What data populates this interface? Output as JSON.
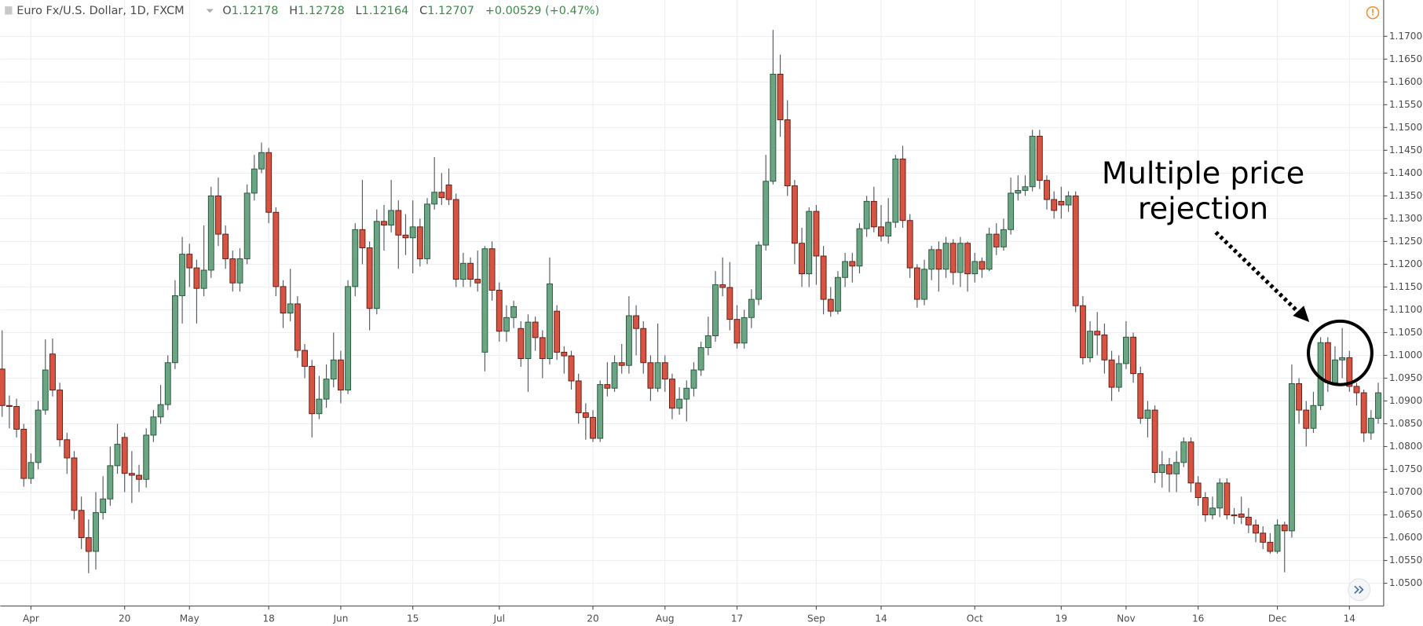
{
  "chart_data": {
    "type": "candlestick",
    "title": "Euro Fx/U.S. Dollar, 1D, FXCM",
    "quote": [
      {
        "label": "O",
        "value": 1.12178
      },
      {
        "label": "H",
        "value": 1.12728
      },
      {
        "label": "L",
        "value": 1.12164
      },
      {
        "label": "C",
        "value": 1.12707
      }
    ],
    "change": "+0.00529 (+0.47%)",
    "annotation": [
      "Multiple price",
      "rejection"
    ],
    "up_color": "#6ba583",
    "down_color": "#d75442",
    "grid": true,
    "ylim": [
      1.045,
      1.1736
    ],
    "yticks": [
      {
        "value": 1.05,
        "label": "1.05000"
      },
      {
        "value": 1.055,
        "label": "1.05500"
      },
      {
        "value": 1.06,
        "label": "1.06000"
      },
      {
        "value": 1.065,
        "label": "1.06500"
      },
      {
        "value": 1.07,
        "label": "1.07000"
      },
      {
        "value": 1.075,
        "label": "1.07500"
      },
      {
        "value": 1.08,
        "label": "1.08000"
      },
      {
        "value": 1.085,
        "label": "1.08500"
      },
      {
        "value": 1.09,
        "label": "1.09000"
      },
      {
        "value": 1.095,
        "label": "1.09500"
      },
      {
        "value": 1.1,
        "label": "1.10000"
      },
      {
        "value": 1.105,
        "label": "1.10500"
      },
      {
        "value": 1.11,
        "label": "1.11000"
      },
      {
        "value": 1.115,
        "label": "1.11500"
      },
      {
        "value": 1.12,
        "label": "1.12000"
      },
      {
        "value": 1.125,
        "label": "1.12500"
      },
      {
        "value": 1.13,
        "label": "1.13000"
      },
      {
        "value": 1.135,
        "label": "1.13500"
      },
      {
        "value": 1.14,
        "label": "1.14000"
      },
      {
        "value": 1.145,
        "label": "1.14500"
      },
      {
        "value": 1.15,
        "label": "1.15000"
      },
      {
        "value": 1.155,
        "label": "1.15500"
      },
      {
        "value": 1.16,
        "label": "1.16000"
      },
      {
        "value": 1.165,
        "label": "1.16500"
      },
      {
        "value": 1.17,
        "label": "1.17000"
      }
    ],
    "categories": [
      null,
      null,
      null,
      null,
      "Apr",
      null,
      null,
      null,
      null,
      null,
      null,
      null,
      null,
      null,
      null,
      null,
      null,
      "20",
      null,
      null,
      null,
      null,
      null,
      null,
      null,
      null,
      "May",
      null,
      null,
      null,
      null,
      null,
      null,
      null,
      null,
      null,
      null,
      "18",
      null,
      null,
      null,
      null,
      null,
      null,
      null,
      null,
      null,
      "Jun",
      null,
      null,
      null,
      null,
      null,
      null,
      null,
      null,
      null,
      "15",
      null,
      null,
      null,
      null,
      null,
      null,
      null,
      null,
      null,
      null,
      null,
      "Jul",
      null,
      null,
      null,
      null,
      null,
      null,
      null,
      null,
      null,
      null,
      null,
      null,
      "20",
      null,
      null,
      null,
      null,
      null,
      null,
      null,
      null,
      null,
      "Aug",
      null,
      null,
      null,
      null,
      null,
      null,
      null,
      null,
      null,
      "17",
      null,
      null,
      null,
      null,
      null,
      null,
      null,
      null,
      null,
      null,
      "Sep",
      null,
      null,
      null,
      null,
      null,
      null,
      null,
      null,
      "14",
      null,
      null,
      null,
      null,
      null,
      null,
      null,
      null,
      null,
      null,
      null,
      null,
      "Oct",
      null,
      null,
      null,
      null,
      null,
      null,
      null,
      null,
      null,
      null,
      null,
      "19",
      null,
      null,
      null,
      null,
      null,
      null,
      null,
      null,
      "Nov",
      null,
      null,
      null,
      null,
      null,
      null,
      null,
      null,
      null,
      "16",
      null,
      null,
      null,
      null,
      null,
      null,
      null,
      null,
      null,
      null,
      "Dec",
      null,
      null,
      null,
      null,
      null,
      null,
      null,
      null,
      null,
      "14",
      null,
      null,
      null,
      null
    ],
    "open": [
      1.097,
      1.089,
      1.0888,
      1.0838,
      1.073,
      1.0765,
      1.088,
      1.1003,
      1.0924,
      1.0815,
      1.0775,
      1.066,
      1.06,
      1.057,
      1.0655,
      1.0685,
      1.0758,
      1.082,
      1.0741,
      1.0737,
      1.0728,
      1.0825,
      1.0865,
      1.0892,
      1.0984,
      1.1131,
      1.1222,
      1.1192,
      1.1147,
      1.1187,
      1.135,
      1.1266,
      1.1212,
      1.1159,
      1.1212,
      1.1356,
      1.1409,
      1.1445,
      1.1314,
      1.1151,
      1.1093,
      1.1113,
      1.1011,
      1.0976,
      1.0872,
      1.0904,
      1.0948,
      1.099,
      1.0924,
      1.1151,
      1.1276,
      1.1236,
      1.1103,
      1.1294,
      1.1286,
      1.1318,
      1.1264,
      1.1258,
      1.1282,
      1.1212,
      1.1332,
      1.1358,
      1.1374,
      1.1342,
      1.1167,
      1.1202,
      1.1167,
      1.1007,
      1.1234,
      1.1143,
      1.1053,
      1.1083,
      1.1059,
      1.0993,
      1.1073,
      1.1039,
      1.0993,
      1.1097,
      1.1007,
      1.0999,
      1.0944,
      1.0874,
      1.0864,
      1.0818,
      1.0936,
      1.0928,
      1.0984,
      1.0978,
      1.1087,
      1.1059,
      1.0984,
      1.0928,
      1.0984,
      1.0948,
      1.0884,
      1.0904,
      1.0928,
      1.0968,
      1.1017,
      1.1043,
      1.1155,
      1.1149,
      1.1079,
      1.1027,
      1.1083,
      1.1123,
      1.1242,
      1.1382,
      1.1617,
      1.1517,
      1.1372,
      1.1246,
      1.1179,
      1.1316,
      1.1218,
      1.1123,
      1.1097,
      1.1171,
      1.1206,
      1.1196,
      1.1278,
      1.1338,
      1.1282,
      1.1262,
      1.1292,
      1.1431,
      1.1296,
      1.1192,
      1.1123,
      1.1189,
      1.1232,
      1.1189,
      1.1246,
      1.1182,
      1.1246,
      1.1179,
      1.1206,
      1.1189,
      1.1266,
      1.1238,
      1.1276,
      1.1356,
      1.1362,
      1.137,
      1.1481,
      1.1384,
      1.1342,
      1.1338,
      1.133,
      1.135,
      1.1109,
      1.0995,
      1.1053,
      1.1045,
      1.099,
      1.093,
      1.0982,
      1.104,
      1.096,
      1.0862,
      1.088,
      1.0743,
      1.076,
      1.074,
      1.0765,
      1.081,
      1.072,
      1.0688,
      1.065,
      1.0665,
      1.072,
      1.065,
      1.0652,
      1.0645,
      1.0628,
      1.061,
      1.059,
      1.057,
      1.0628,
      1.0615,
      1.0938,
      1.088,
      1.084,
      1.089,
      1.1028,
      1.094,
      1.099,
      1.0995,
      1.0932,
      1.0918,
      1.083,
      1.0862
    ],
    "high": [
      1.1055,
      1.0912,
      1.0905,
      1.085,
      1.0785,
      1.09,
      1.1035,
      1.1037,
      1.094,
      1.083,
      1.079,
      1.069,
      1.064,
      1.07,
      1.0735,
      1.08,
      1.085,
      1.083,
      1.079,
      1.076,
      1.084,
      1.088,
      1.0935,
      1.1,
      1.1165,
      1.126,
      1.1245,
      1.121,
      1.1285,
      1.137,
      1.139,
      1.1285,
      1.123,
      1.1235,
      1.1375,
      1.144,
      1.1467,
      1.1455,
      1.1325,
      1.1165,
      1.119,
      1.113,
      1.1025,
      1.099,
      1.0955,
      1.098,
      1.105,
      1.101,
      1.1165,
      1.129,
      1.1385,
      1.125,
      1.132,
      1.133,
      1.1385,
      1.134,
      1.131,
      1.134,
      1.13,
      1.1345,
      1.1435,
      1.14,
      1.141,
      1.1355,
      1.1225,
      1.1215,
      1.123,
      1.124,
      1.125,
      1.116,
      1.111,
      1.112,
      1.1075,
      1.109,
      1.1085,
      1.1055,
      1.1215,
      1.111,
      1.102,
      1.101,
      1.096,
      1.0895,
      1.088,
      1.0945,
      1.0985,
      1.1,
      1.1025,
      1.113,
      1.111,
      1.1075,
      1.1,
      1.107,
      1.1,
      1.096,
      1.093,
      1.0945,
      1.0985,
      1.103,
      1.1085,
      1.1185,
      1.1215,
      1.1205,
      1.111,
      1.11,
      1.1145,
      1.125,
      1.144,
      1.1714,
      1.166,
      1.156,
      1.1385,
      1.128,
      1.1325,
      1.133,
      1.124,
      1.115,
      1.1185,
      1.1225,
      1.1225,
      1.129,
      1.135,
      1.137,
      1.133,
      1.1345,
      1.144,
      1.146,
      1.131,
      1.12,
      1.121,
      1.124,
      1.125,
      1.126,
      1.1255,
      1.126,
      1.125,
      1.1225,
      1.1215,
      1.128,
      1.129,
      1.13,
      1.139,
      1.1395,
      1.1395,
      1.1495,
      1.1495,
      1.1395,
      1.136,
      1.137,
      1.136,
      1.136,
      1.113,
      1.1075,
      1.1095,
      1.107,
      1.101,
      1.1,
      1.1075,
      1.105,
      1.0975,
      1.09,
      1.089,
      1.079,
      1.0775,
      1.079,
      1.082,
      1.082,
      1.0735,
      1.07,
      1.069,
      1.073,
      1.073,
      1.0665,
      1.069,
      1.0665,
      1.064,
      1.0625,
      1.061,
      1.064,
      1.0635,
      1.098,
      1.095,
      1.09,
      1.092,
      1.104,
      1.104,
      1.102,
      1.106,
      1.101,
      1.094,
      1.0925,
      1.088,
      1.094
    ],
    "low": [
      1.0865,
      1.084,
      1.082,
      1.0712,
      1.0718,
      1.075,
      1.087,
      1.091,
      1.08,
      1.074,
      1.064,
      1.0575,
      1.0522,
      1.053,
      1.064,
      1.067,
      1.074,
      1.07,
      1.0676,
      1.07,
      1.071,
      1.081,
      1.085,
      1.088,
      1.097,
      1.107,
      1.115,
      1.107,
      1.113,
      1.117,
      1.124,
      1.119,
      1.114,
      1.114,
      1.12,
      1.134,
      1.14,
      1.129,
      1.113,
      1.106,
      1.1075,
      1.0995,
      1.095,
      1.082,
      1.086,
      1.0885,
      1.093,
      1.0895,
      1.0915,
      1.113,
      1.12,
      1.1055,
      1.109,
      1.123,
      1.127,
      1.119,
      1.122,
      1.118,
      1.1195,
      1.12,
      1.132,
      1.133,
      1.133,
      1.115,
      1.115,
      1.115,
      1.114,
      1.0965,
      1.112,
      1.103,
      1.103,
      1.106,
      1.0975,
      1.092,
      1.101,
      1.095,
      1.098,
      1.099,
      1.096,
      1.0925,
      1.085,
      1.0815,
      1.081,
      1.081,
      1.091,
      1.092,
      1.096,
      1.096,
      1.1,
      1.096,
      1.09,
      1.092,
      1.092,
      1.086,
      1.087,
      1.0855,
      1.091,
      1.0955,
      1.1,
      1.103,
      1.113,
      1.1055,
      1.1015,
      1.1015,
      1.106,
      1.111,
      1.123,
      1.1375,
      1.148,
      1.135,
      1.12,
      1.115,
      1.115,
      1.1155,
      1.109,
      1.1085,
      1.109,
      1.115,
      1.116,
      1.118,
      1.126,
      1.127,
      1.125,
      1.1245,
      1.128,
      1.128,
      1.117,
      1.1105,
      1.111,
      1.1165,
      1.114,
      1.117,
      1.1155,
      1.115,
      1.114,
      1.116,
      1.117,
      1.1185,
      1.122,
      1.123,
      1.1265,
      1.134,
      1.135,
      1.136,
      1.1365,
      1.132,
      1.13,
      1.13,
      1.1315,
      1.1095,
      1.098,
      1.0985,
      1.1,
      1.096,
      1.09,
      1.092,
      1.097,
      1.094,
      1.085,
      1.082,
      1.072,
      1.071,
      1.07,
      1.07,
      1.0755,
      1.07,
      1.067,
      1.0635,
      1.064,
      1.0645,
      1.064,
      1.063,
      1.063,
      1.061,
      1.059,
      1.0575,
      1.0565,
      1.0565,
      1.0524,
      1.06,
      1.085,
      1.08,
      1.083,
      1.088,
      1.092,
      1.0935,
      1.095,
      1.092,
      1.089,
      1.081,
      1.0815,
      1.085
    ],
    "close": [
      1.089,
      1.0888,
      1.0838,
      1.073,
      1.0765,
      1.088,
      1.0968,
      1.0924,
      1.0815,
      1.0775,
      1.066,
      1.06,
      1.057,
      1.0655,
      1.0685,
      1.0758,
      1.0805,
      1.0741,
      1.0737,
      1.0728,
      1.0825,
      1.0865,
      1.0892,
      1.0984,
      1.1131,
      1.1222,
      1.1192,
      1.1147,
      1.1187,
      1.135,
      1.1266,
      1.1212,
      1.1159,
      1.1212,
      1.1356,
      1.1409,
      1.1445,
      1.1314,
      1.1151,
      1.1093,
      1.1113,
      1.1011,
      1.0976,
      1.0872,
      1.0904,
      1.0948,
      1.099,
      1.0924,
      1.1151,
      1.1276,
      1.1236,
      1.1103,
      1.1294,
      1.1286,
      1.1318,
      1.1264,
      1.1258,
      1.1282,
      1.1212,
      1.1332,
      1.1358,
      1.1346,
      1.1342,
      1.1167,
      1.1202,
      1.1167,
      1.1159,
      1.1234,
      1.1143,
      1.1053,
      1.1083,
      1.1107,
      1.0993,
      1.1073,
      1.1039,
      1.0993,
      1.1157,
      1.1007,
      1.0999,
      1.0944,
      1.0874,
      1.0864,
      1.0818,
      1.0936,
      1.0928,
      1.0984,
      1.0978,
      1.1087,
      1.1059,
      1.0984,
      1.0928,
      1.0984,
      1.0948,
      1.0884,
      1.0904,
      1.0928,
      1.0968,
      1.1017,
      1.1043,
      1.1155,
      1.1149,
      1.1079,
      1.1027,
      1.1083,
      1.1123,
      1.1242,
      1.1382,
      1.1617,
      1.1517,
      1.1372,
      1.1246,
      1.1179,
      1.1316,
      1.1218,
      1.1123,
      1.1097,
      1.1171,
      1.1206,
      1.1196,
      1.1278,
      1.1338,
      1.1282,
      1.1262,
      1.1292,
      1.1431,
      1.1296,
      1.1192,
      1.1123,
      1.1189,
      1.1232,
      1.1189,
      1.1246,
      1.1182,
      1.1246,
      1.1179,
      1.1206,
      1.1189,
      1.1266,
      1.1238,
      1.1276,
      1.1356,
      1.1362,
      1.137,
      1.1481,
      1.1384,
      1.1342,
      1.1318,
      1.133,
      1.135,
      1.1109,
      1.0995,
      1.1053,
      1.1045,
      1.099,
      1.093,
      1.0982,
      1.104,
      1.096,
      1.0862,
      1.088,
      1.0743,
      1.076,
      1.074,
      1.0765,
      1.081,
      1.072,
      1.0688,
      1.065,
      1.0665,
      1.072,
      1.065,
      1.0648,
      1.0645,
      1.0628,
      1.061,
      1.059,
      1.057,
      1.0628,
      1.0615,
      1.0938,
      1.088,
      1.084,
      1.089,
      1.1028,
      1.094,
      1.099,
      1.0995,
      1.0932,
      1.0918,
      1.083,
      1.0862,
      1.0918
    ]
  }
}
